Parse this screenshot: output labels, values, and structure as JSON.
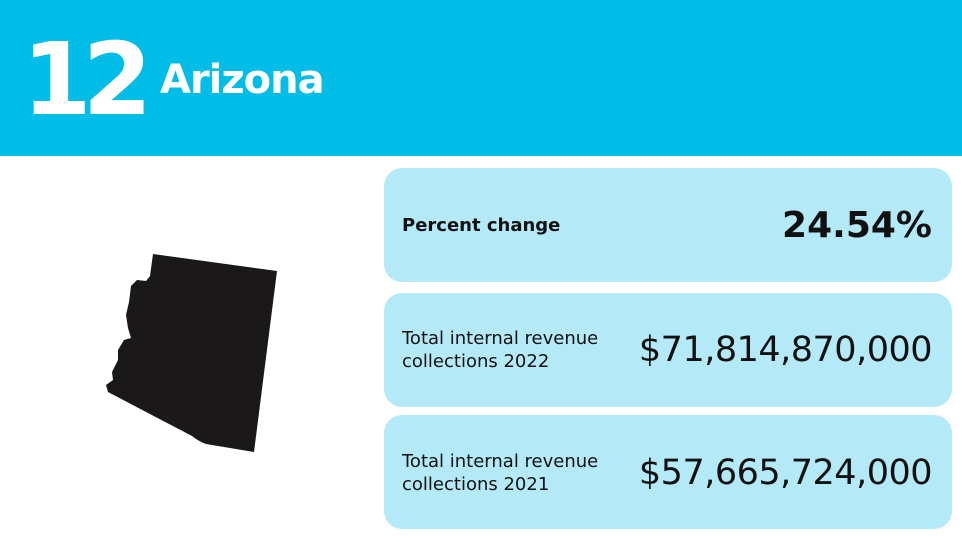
{
  "header": {
    "rank": "12",
    "state": "Arizona",
    "background_color": "#02bde8"
  },
  "map": {
    "shape": "arizona-state-silhouette",
    "color": "#1a1818"
  },
  "stats": [
    {
      "label": "Percent change",
      "value": "24.54%"
    },
    {
      "label": "Total internal revenue collections 2022",
      "value": "$71,814,870,000"
    },
    {
      "label": "Total internal revenue collections 2021",
      "value": "$57,665,724,000"
    }
  ],
  "card_color": "#b4eaf8"
}
